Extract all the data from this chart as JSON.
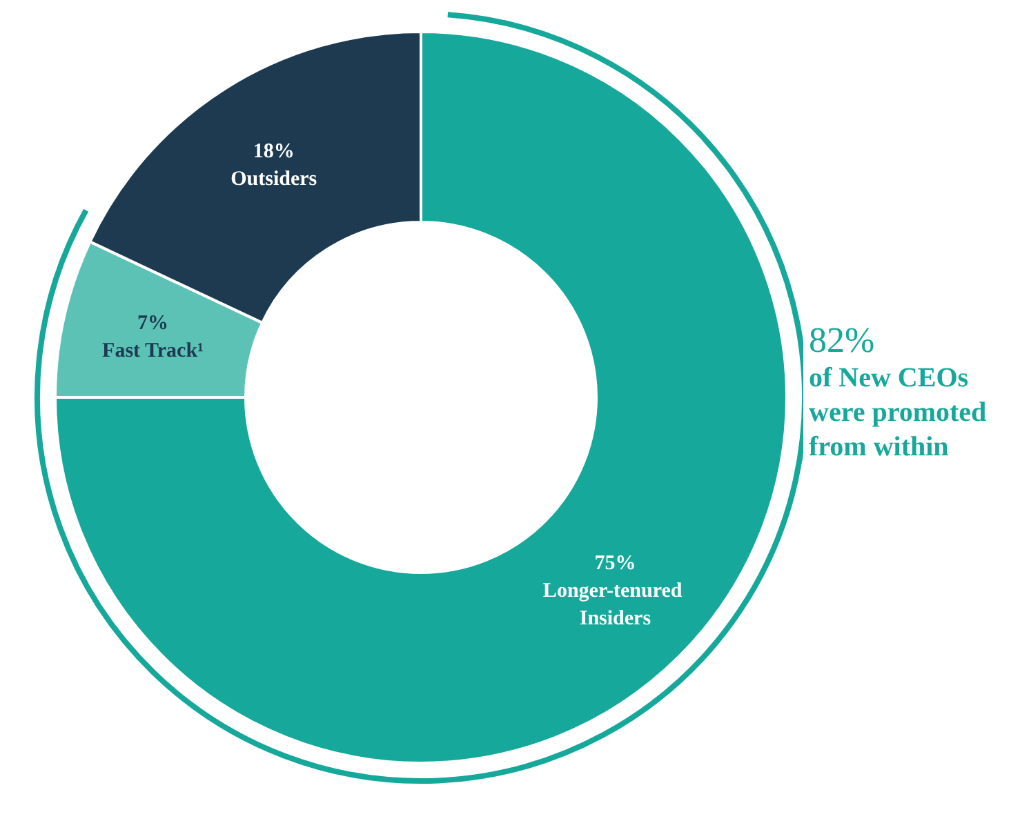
{
  "chart_data": {
    "type": "donut",
    "categories": [
      "Longer-tenured Insiders",
      "Fast Track¹",
      "Outsiders"
    ],
    "values": [
      75,
      7,
      18
    ],
    "colors": [
      "#16a89a",
      "#5cc2b6",
      "#1d3a50"
    ],
    "value_labels": [
      "75%",
      "7%",
      "18%"
    ],
    "annotations": [
      "82%",
      "of New CEOs were promoted from within"
    ],
    "legend": false
  }
}
